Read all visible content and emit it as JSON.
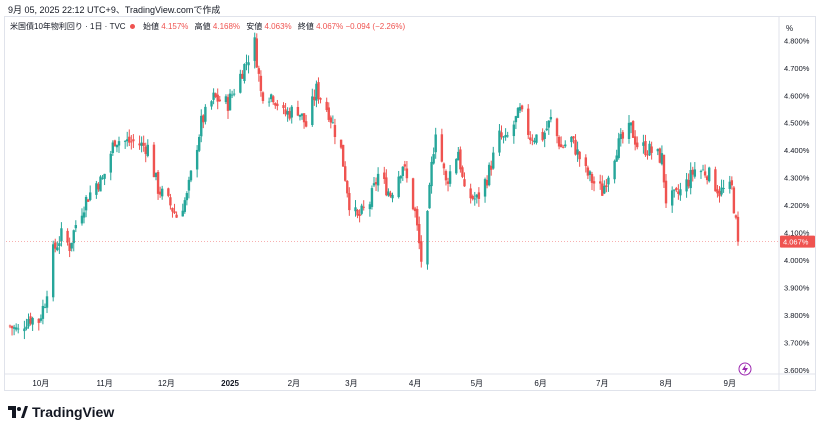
{
  "caption": "9月 05, 2025 22:12 UTC+9、TradingView.comで作成",
  "legend": {
    "symbol": "米国債10年物利回り · 1日 · TVC",
    "open_label": "始値",
    "open": "4.157%",
    "high_label": "高値",
    "high": "4.168%",
    "low_label": "安値",
    "low": "4.063%",
    "close_label": "終値",
    "close": "4.067%",
    "change": "−0.094",
    "change_pct": "(−2.26%)"
  },
  "axis_unit": "%",
  "brand": "TradingView",
  "colors": {
    "up": "#26a69a",
    "down": "#ef5350",
    "last_price_bg": "#ef5350"
  },
  "chart_data": {
    "type": "candlestick",
    "title": "",
    "ylabel": "%",
    "ylim": [
      3.585,
      4.885
    ],
    "y_ticks": [
      3.6,
      3.7,
      3.8,
      3.9,
      4.0,
      4.1,
      4.2,
      4.3,
      4.4,
      4.5,
      4.6,
      4.7,
      4.8
    ],
    "y_tick_labels": [
      "3.600%",
      "3.700%",
      "3.800%",
      "3.900%",
      "4.000%",
      "4.100%",
      "4.200%",
      "4.300%",
      "4.400%",
      "4.500%",
      "4.600%",
      "4.700%",
      "4.800%"
    ],
    "x_labels": [
      {
        "label": "10月",
        "date": "2024-10-01"
      },
      {
        "label": "11月",
        "date": "2024-11-01"
      },
      {
        "label": "12月",
        "date": "2024-12-01"
      },
      {
        "label": "2025",
        "date": "2025-01-01"
      },
      {
        "label": "2月",
        "date": "2025-02-01"
      },
      {
        "label": "3月",
        "date": "2025-03-01"
      },
      {
        "label": "4月",
        "date": "2025-04-01"
      },
      {
        "label": "5月",
        "date": "2025-05-01"
      },
      {
        "label": "6月",
        "date": "2025-06-01"
      },
      {
        "label": "7月",
        "date": "2025-07-01"
      },
      {
        "label": "8月",
        "date": "2025-08-01"
      },
      {
        "label": "9月",
        "date": "2025-09-01"
      }
    ],
    "date_range": [
      "2024-09-16",
      "2025-09-05"
    ],
    "last_price": 4.067,
    "last_price_label": "4.067%",
    "ohlc_path": [
      [
        "2024-09-16",
        3.76
      ],
      [
        "2024-09-20",
        3.74
      ],
      [
        "2024-09-25",
        3.79
      ],
      [
        "2024-09-30",
        3.78
      ],
      [
        "2024-10-03",
        3.85
      ],
      [
        "2024-10-07",
        4.03
      ],
      [
        "2024-10-11",
        4.09
      ],
      [
        "2024-10-15",
        4.05
      ],
      [
        "2024-10-18",
        4.13
      ],
      [
        "2024-10-23",
        4.22
      ],
      [
        "2024-10-28",
        4.28
      ],
      [
        "2024-10-31",
        4.29
      ],
      [
        "2024-11-06",
        4.44
      ],
      [
        "2024-11-12",
        4.43
      ],
      [
        "2024-11-15",
        4.43
      ],
      [
        "2024-11-22",
        4.41
      ],
      [
        "2024-11-27",
        4.26
      ],
      [
        "2024-12-03",
        4.2
      ],
      [
        "2024-12-06",
        4.16
      ],
      [
        "2024-12-11",
        4.23
      ],
      [
        "2024-12-18",
        4.5
      ],
      [
        "2024-12-24",
        4.59
      ],
      [
        "2024-12-31",
        4.57
      ],
      [
        "2025-01-07",
        4.69
      ],
      [
        "2025-01-13",
        4.79
      ],
      [
        "2025-01-16",
        4.61
      ],
      [
        "2025-01-22",
        4.6
      ],
      [
        "2025-01-27",
        4.53
      ],
      [
        "2025-02-03",
        4.55
      ],
      [
        "2025-02-07",
        4.49
      ],
      [
        "2025-02-12",
        4.62
      ],
      [
        "2025-02-18",
        4.54
      ],
      [
        "2025-02-24",
        4.4
      ],
      [
        "2025-02-28",
        4.21
      ],
      [
        "2025-03-04",
        4.15
      ],
      [
        "2025-03-10",
        4.21
      ],
      [
        "2025-03-14",
        4.31
      ],
      [
        "2025-03-20",
        4.24
      ],
      [
        "2025-03-26",
        4.35
      ],
      [
        "2025-04-01",
        4.17
      ],
      [
        "2025-04-04",
        4.0
      ],
      [
        "2025-04-07",
        4.15
      ],
      [
        "2025-04-09",
        4.34
      ],
      [
        "2025-04-11",
        4.48
      ],
      [
        "2025-04-16",
        4.28
      ],
      [
        "2025-04-22",
        4.4
      ],
      [
        "2025-04-25",
        4.24
      ],
      [
        "2025-05-01",
        4.22
      ],
      [
        "2025-05-06",
        4.3
      ],
      [
        "2025-05-12",
        4.45
      ],
      [
        "2025-05-15",
        4.43
      ],
      [
        "2025-05-20",
        4.51
      ],
      [
        "2025-05-22",
        4.54
      ],
      [
        "2025-05-27",
        4.45
      ],
      [
        "2025-06-02",
        4.45
      ],
      [
        "2025-06-06",
        4.51
      ],
      [
        "2025-06-11",
        4.41
      ],
      [
        "2025-06-16",
        4.44
      ],
      [
        "2025-06-23",
        4.32
      ],
      [
        "2025-06-27",
        4.28
      ],
      [
        "2025-07-01",
        4.25
      ],
      [
        "2025-07-08",
        4.41
      ],
      [
        "2025-07-15",
        4.48
      ],
      [
        "2025-07-18",
        4.42
      ],
      [
        "2025-07-24",
        4.4
      ],
      [
        "2025-07-30",
        4.37
      ],
      [
        "2025-08-01",
        4.22
      ],
      [
        "2025-08-06",
        4.23
      ],
      [
        "2025-08-12",
        4.29
      ],
      [
        "2025-08-15",
        4.33
      ],
      [
        "2025-08-21",
        4.32
      ],
      [
        "2025-08-27",
        4.25
      ],
      [
        "2025-09-02",
        4.26
      ],
      [
        "2025-09-05",
        4.067
      ]
    ]
  }
}
